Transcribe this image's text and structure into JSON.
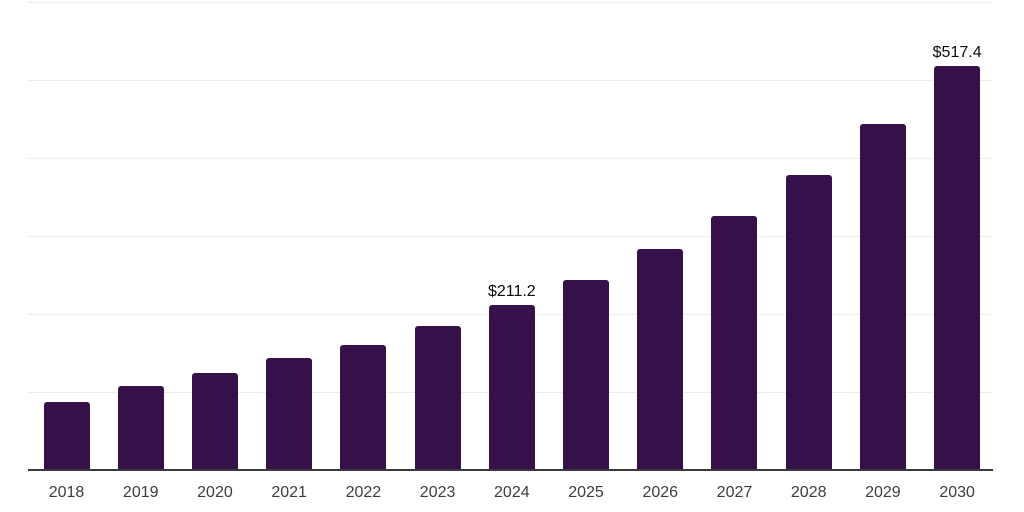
{
  "chart_data": {
    "type": "bar",
    "title": "",
    "xlabel": "",
    "ylabel": "",
    "categories": [
      "2018",
      "2019",
      "2020",
      "2021",
      "2022",
      "2023",
      "2024",
      "2025",
      "2026",
      "2027",
      "2028",
      "2029",
      "2030"
    ],
    "values": [
      86.7,
      108.1,
      124.2,
      143.4,
      160.6,
      184.0,
      211.2,
      243.8,
      283.5,
      324.9,
      378.3,
      443.6,
      517.4
    ],
    "data_labels": [
      {
        "category": "2024",
        "text": "$211.2"
      },
      {
        "category": "2030",
        "text": "$517.4"
      }
    ],
    "ylim": [
      0,
      600
    ],
    "gridline_interval": 100,
    "grid": true,
    "legend": false,
    "axis_ticks_y_visible": false,
    "colors": {
      "bar": "#351049",
      "axis_line": "#3a3a3a",
      "gridline": "#ececec",
      "tick_label": "#3d3d3d",
      "value_label": "#0c0c0c",
      "background": "#ffffff"
    }
  }
}
